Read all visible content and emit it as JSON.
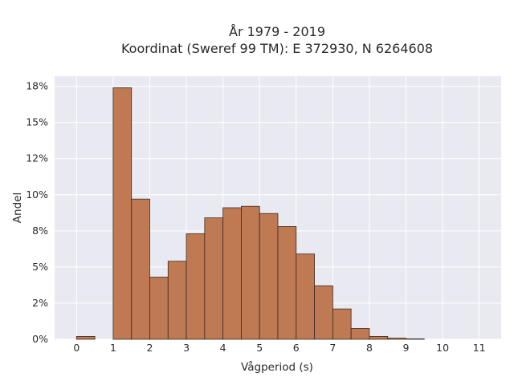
{
  "chart_data": {
    "type": "bar",
    "title": "År 1979 - 2019",
    "subtitle": "Koordinat (Sweref 99 TM): E 372930, N 6264608",
    "xlabel": "Vågperiod (s)",
    "ylabel": "Andel",
    "xlim": [
      -0.6,
      11.6
    ],
    "ylim": [
      0,
      0.182
    ],
    "x_ticks": [
      0,
      1,
      2,
      3,
      4,
      5,
      6,
      7,
      8,
      9,
      10,
      11
    ],
    "x_tick_labels": [
      "0",
      "1",
      "2",
      "3",
      "4",
      "5",
      "6",
      "7",
      "8",
      "9",
      "10",
      "11"
    ],
    "y_ticks": [
      0,
      0.025,
      0.05,
      0.075,
      0.1,
      0.125,
      0.15,
      0.175
    ],
    "y_tick_labels": [
      "0%",
      "2%",
      "5%",
      "8%",
      "10%",
      "12%",
      "15%",
      "18%"
    ],
    "grid": true,
    "bin_width": 0.5,
    "bins": [
      {
        "x": 0.0,
        "value": 0.002
      },
      {
        "x": 1.0,
        "value": 0.174
      },
      {
        "x": 1.5,
        "value": 0.097
      },
      {
        "x": 2.0,
        "value": 0.043
      },
      {
        "x": 2.5,
        "value": 0.054
      },
      {
        "x": 3.0,
        "value": 0.073
      },
      {
        "x": 3.5,
        "value": 0.084
      },
      {
        "x": 4.0,
        "value": 0.091
      },
      {
        "x": 4.5,
        "value": 0.092
      },
      {
        "x": 5.0,
        "value": 0.087
      },
      {
        "x": 5.5,
        "value": 0.078
      },
      {
        "x": 6.0,
        "value": 0.059
      },
      {
        "x": 6.5,
        "value": 0.037
      },
      {
        "x": 7.0,
        "value": 0.021
      },
      {
        "x": 7.5,
        "value": 0.0075
      },
      {
        "x": 8.0,
        "value": 0.002
      },
      {
        "x": 8.5,
        "value": 0.0008
      },
      {
        "x": 9.0,
        "value": 0.0003
      }
    ],
    "colors": {
      "bar_fill": "#c07a53",
      "bar_edge": "#3b2a20",
      "plot_bg": "#e9e9f1",
      "grid": "#ffffff"
    }
  }
}
